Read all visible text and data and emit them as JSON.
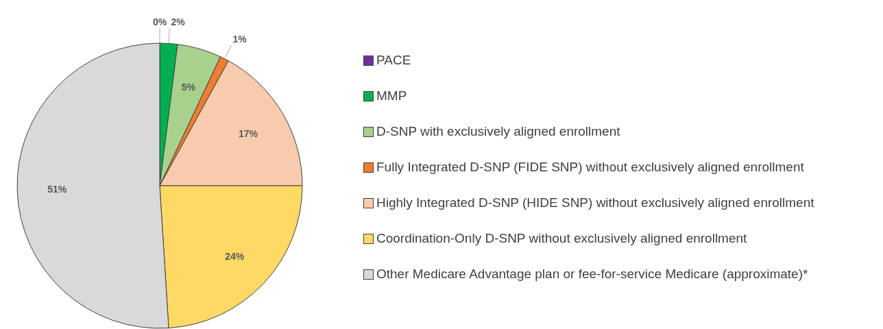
{
  "chart_data": {
    "type": "pie",
    "categories": [
      "PACE",
      "MMP",
      "D-SNP with exclusively aligned enrollment",
      "Fully Integrated D-SNP (FIDE SNP) without exclusively aligned enrollment",
      "Highly Integrated D-SNP (HIDE SNP) without exclusively aligned enrollment",
      "Coordination-Only D-SNP without exclusively aligned enrollment",
      "Other Medicare Advantage plan or fee-for-service Medicare (approximate)*"
    ],
    "values": [
      0,
      2,
      5,
      1,
      17,
      24,
      51
    ],
    "value_labels": [
      "0%",
      "2%",
      "5%",
      "1%",
      "17%",
      "24%",
      "51%"
    ],
    "colors": [
      "#7030a0",
      "#00b050",
      "#a9d18e",
      "#ed7d31",
      "#f8cbad",
      "#ffd966",
      "#d9d9d9"
    ],
    "legend": "right"
  }
}
